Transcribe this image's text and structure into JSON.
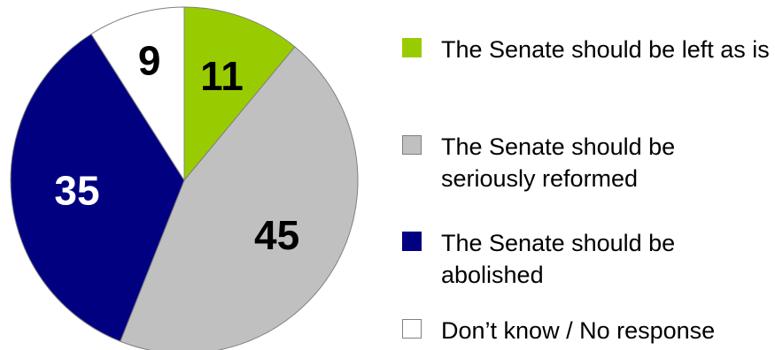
{
  "chart_data": {
    "type": "pie",
    "title": "",
    "slices": [
      {
        "label": "The Senate should be left as is",
        "value": 11,
        "color": "#99CC00"
      },
      {
        "label": "The Senate should be seriously reformed",
        "value": 45,
        "color": "#C0C0C0"
      },
      {
        "label": "The Senate should be abolished",
        "value": 35,
        "color": "#000080"
      },
      {
        "label": "Don’t know / No response",
        "value": 9,
        "color": "#FFFFFF"
      }
    ],
    "data_labels": [
      "11",
      "45",
      "35",
      "9"
    ],
    "data_label_colors": [
      "#000000",
      "#000000",
      "#FFFFFF",
      "#000000"
    ],
    "start_angle_deg": 0,
    "direction": "clockwise",
    "legend_position": "right"
  }
}
